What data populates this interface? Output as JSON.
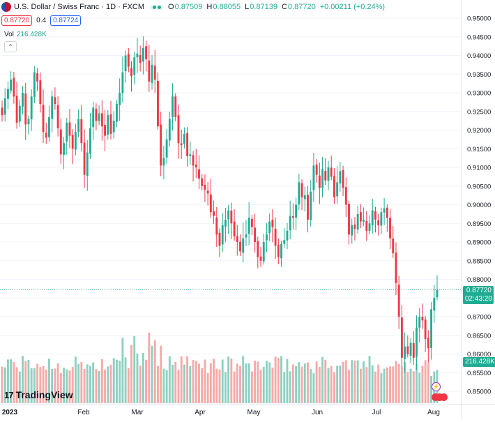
{
  "header": {
    "symbol_title": "U.S. Dollar / Swiss Franc · 1D · FXCM",
    "open_label": "O",
    "open_value": "0.87509",
    "high_label": "H",
    "high_value": "0.88055",
    "low_label": "L",
    "low_value": "0.87139",
    "close_label": "C",
    "close_value": "0.87720",
    "change": "+0.00211 (+0.24%)"
  },
  "quote": {
    "sell": "0.87720",
    "spread": "0.4",
    "buy": "0.87724"
  },
  "volume": {
    "label": "Vol",
    "value": "216.428K"
  },
  "price_tag": {
    "price": "0.87720",
    "countdown": "02:43:20"
  },
  "volume_tag": "216.428K",
  "logo": {
    "text": "TradingView"
  },
  "colors": {
    "up": "#22ab94",
    "down": "#f23645",
    "volume_up": "#8cd0c0",
    "volume_down": "#f7a9a7",
    "grid": "#f0f3fa"
  },
  "icons": [
    "flag-icon",
    "lightning-icon",
    "event-icon",
    "collapse-chevron-icon"
  ],
  "chart_data": {
    "type": "candlestick",
    "title": "U.S. Dollar / Swiss Franc · 1D · FXCM",
    "xlabel": "",
    "ylabel": "",
    "y_ticks": [
      "0.95000",
      "0.94500",
      "0.94000",
      "0.93500",
      "0.93000",
      "0.92500",
      "0.92000",
      "0.91500",
      "0.91000",
      "0.90500",
      "0.90000",
      "0.89500",
      "0.89000",
      "0.88500",
      "0.88000",
      "0.87500",
      "0.87000",
      "0.86500",
      "0.86000",
      "0.85500",
      "0.85000"
    ],
    "x_ticks": [
      "2023",
      "Feb",
      "Mar",
      "Apr",
      "May",
      "Jun",
      "Jul",
      "Aug"
    ],
    "ylim": [
      0.848,
      0.952
    ],
    "grid": true,
    "candles_note": "daily OHLC, approximate",
    "closes": [
      0.924,
      0.9285,
      0.931,
      0.9335,
      0.929,
      0.922,
      0.9265,
      0.93,
      0.9215,
      0.923,
      0.929,
      0.9355,
      0.933,
      0.927,
      0.9195,
      0.918,
      0.9235,
      0.929,
      0.927,
      0.9205,
      0.9135,
      0.9165,
      0.922,
      0.9185,
      0.915,
      0.9195,
      0.923,
      0.9165,
      0.908,
      0.914,
      0.9205,
      0.926,
      0.9225,
      0.9245,
      0.921,
      0.9185,
      0.924,
      0.919,
      0.9225,
      0.927,
      0.93,
      0.9355,
      0.94,
      0.937,
      0.9345,
      0.9395,
      0.9405,
      0.938,
      0.942,
      0.939,
      0.933,
      0.9375,
      0.9335,
      0.921,
      0.9105,
      0.9125,
      0.9175,
      0.923,
      0.929,
      0.9235,
      0.9165,
      0.916,
      0.919,
      0.913,
      0.9135,
      0.9105,
      0.91,
      0.907,
      0.905,
      0.904,
      0.903,
      0.898,
      0.897,
      0.892,
      0.889,
      0.8945,
      0.896,
      0.8985,
      0.895,
      0.8915,
      0.89,
      0.8875,
      0.891,
      0.892,
      0.8965,
      0.894,
      0.89,
      0.886,
      0.885,
      0.89,
      0.892,
      0.8955,
      0.894,
      0.889,
      0.886,
      0.8895,
      0.8905,
      0.893,
      0.897,
      0.8965,
      0.9,
      0.906,
      0.902,
      0.9025,
      0.896,
      0.9035,
      0.9105,
      0.908,
      0.9045,
      0.9095,
      0.9065,
      0.91,
      0.9075,
      0.902,
      0.906,
      0.909,
      0.9045,
      0.9,
      0.892,
      0.8945,
      0.8935,
      0.8975,
      0.8955,
      0.896,
      0.893,
      0.895,
      0.8985,
      0.896,
      0.8945,
      0.898,
      0.899,
      0.8965,
      0.891,
      0.887,
      0.879,
      0.87,
      0.859,
      0.862,
      0.86,
      0.863,
      0.859,
      0.867,
      0.87,
      0.869,
      0.864,
      0.8615,
      0.872,
      0.875,
      0.8772
    ],
    "volume_ylim": [
      0,
      90000
    ]
  }
}
